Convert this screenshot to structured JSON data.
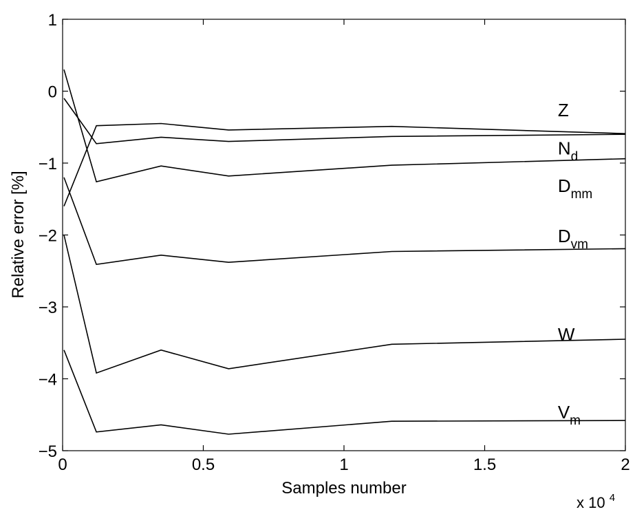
{
  "chart_data": {
    "type": "line",
    "title": "",
    "xlabel": "Samples number",
    "ylabel": "Relative error [%]",
    "x_multiplier": {
      "base": "x 10",
      "exponent": "4"
    },
    "xlim": [
      0,
      20000
    ],
    "ylim": [
      -5,
      1
    ],
    "x_ticks": [
      0,
      5000,
      10000,
      15000,
      20000
    ],
    "x_tick_labels": [
      "0",
      "0.5",
      "1",
      "1.5",
      "2"
    ],
    "y_ticks": [
      1,
      0,
      -1,
      -2,
      -3,
      -4,
      -5
    ],
    "y_tick_labels": [
      "1",
      "0",
      "−1",
      "−2",
      "−3",
      "−4",
      "−5"
    ],
    "grid": false,
    "x": [
      50,
      1200,
      3500,
      5900,
      11700,
      20000
    ],
    "series": [
      {
        "name": "Z",
        "label_main": "Z",
        "label_sub": "",
        "label_at": [
          17600,
          -0.35
        ],
        "values": [
          -1.6,
          -0.48,
          -0.45,
          -0.54,
          -0.49,
          -0.59
        ]
      },
      {
        "name": "N_d",
        "label_main": "N",
        "label_sub": "d",
        "label_at": [
          17600,
          -0.88
        ],
        "values": [
          -0.1,
          -0.73,
          -0.64,
          -0.7,
          -0.63,
          -0.6
        ]
      },
      {
        "name": "D_mm",
        "label_main": "D",
        "label_sub": "mm",
        "label_at": [
          17600,
          -1.4
        ],
        "values": [
          0.3,
          -1.26,
          -1.04,
          -1.18,
          -1.03,
          -0.94
        ]
      },
      {
        "name": "D_vm",
        "label_main": "D",
        "label_sub": "vm",
        "label_at": [
          17600,
          -2.1
        ],
        "values": [
          -1.2,
          -2.41,
          -2.28,
          -2.38,
          -2.23,
          -2.19
        ]
      },
      {
        "name": "W",
        "label_main": "W",
        "label_sub": "",
        "label_at": [
          17600,
          -3.47
        ],
        "values": [
          -2.0,
          -3.92,
          -3.6,
          -3.86,
          -3.52,
          -3.45
        ]
      },
      {
        "name": "V_m",
        "label_main": "V",
        "label_sub": "m",
        "label_at": [
          17600,
          -4.55
        ],
        "values": [
          -3.6,
          -4.74,
          -4.64,
          -4.77,
          -4.59,
          -4.58
        ]
      }
    ]
  }
}
